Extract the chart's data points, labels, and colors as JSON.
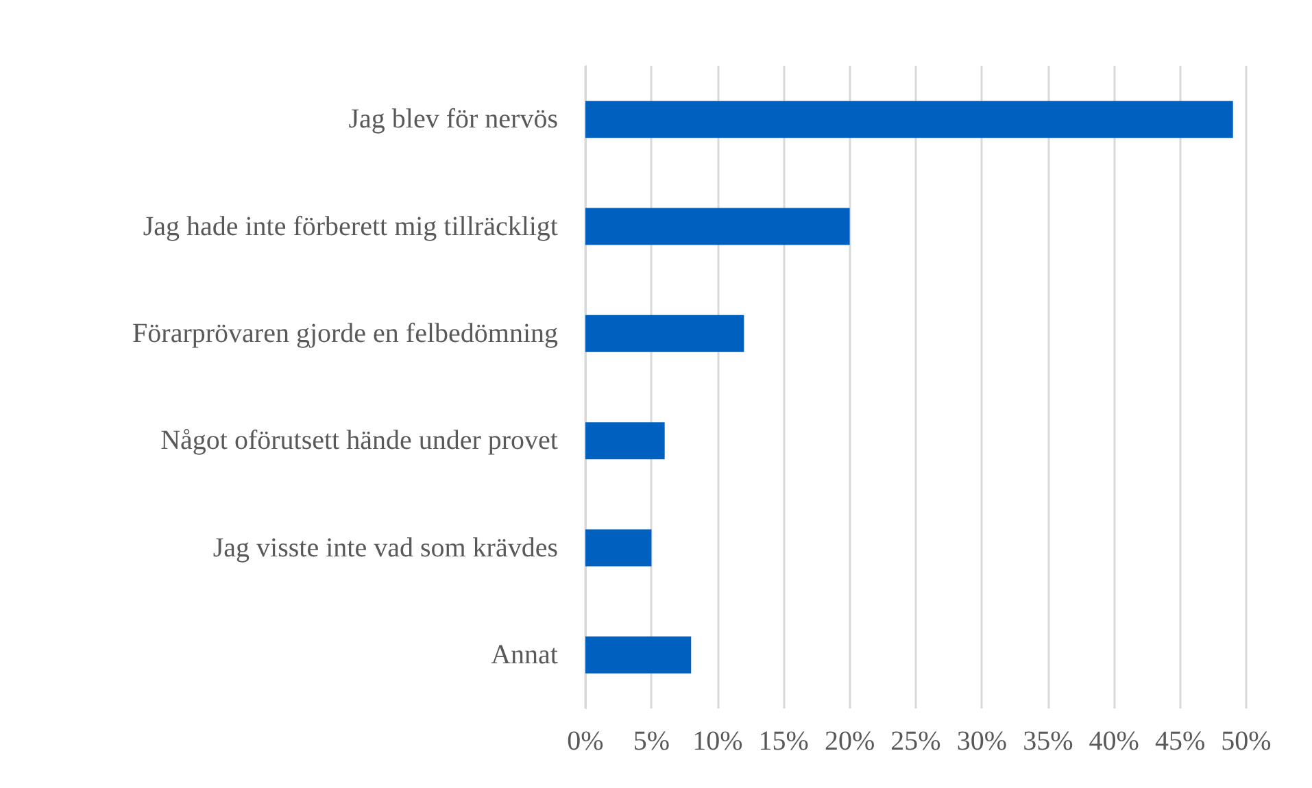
{
  "chart_data": {
    "type": "bar",
    "orientation": "horizontal",
    "categories": [
      "Jag blev för nervös",
      "Jag hade inte förberett mig tillräckligt",
      "Förarprövaren gjorde en felbedömning",
      "Något oförutsett hände under provet",
      "Jag visste inte vad som krävdes",
      "Annat"
    ],
    "values": [
      49,
      20,
      12,
      6,
      5,
      8
    ],
    "color": "#0060c0",
    "xlim": [
      0,
      50
    ],
    "xticks": [
      {
        "value": 0,
        "label": "0%"
      },
      {
        "value": 5,
        "label": "5%"
      },
      {
        "value": 10,
        "label": "10%"
      },
      {
        "value": 15,
        "label": "15%"
      },
      {
        "value": 20,
        "label": "20%"
      },
      {
        "value": 25,
        "label": "25%"
      },
      {
        "value": 30,
        "label": "30%"
      },
      {
        "value": 35,
        "label": "35%"
      },
      {
        "value": 40,
        "label": "40%"
      },
      {
        "value": 45,
        "label": "45%"
      },
      {
        "value": 50,
        "label": "50%"
      }
    ],
    "grid": "x"
  }
}
